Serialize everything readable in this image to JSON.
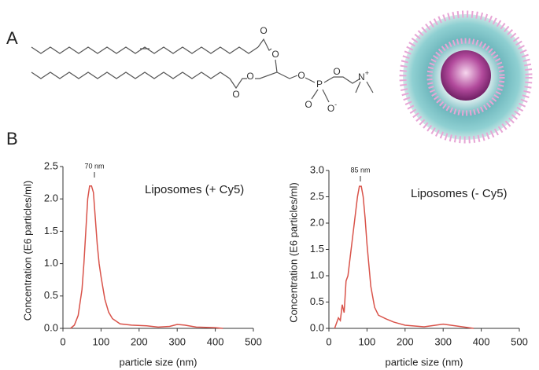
{
  "panel_labels": [
    "A",
    "B"
  ],
  "atoms": [
    {
      "label": "O"
    },
    {
      "label": "O"
    },
    {
      "label": "O"
    },
    {
      "label": "O"
    },
    {
      "label": "O"
    },
    {
      "label": "P"
    },
    {
      "label": "O"
    },
    {
      "label": "O"
    },
    {
      "label": "O",
      "charge": "-"
    },
    {
      "label": "N",
      "charge": "+"
    }
  ],
  "chart_data": [
    {
      "type": "line",
      "x_label": "particle size (nm)",
      "y_label": "Concentration (E6 particles/ml)",
      "annotation": "Liposomes (+ Cy5)",
      "peak_label": "70 nm",
      "x": [
        20,
        30,
        40,
        50,
        55,
        60,
        65,
        70,
        75,
        80,
        85,
        90,
        95,
        100,
        110,
        120,
        130,
        150,
        180,
        220,
        250,
        280,
        300,
        320,
        350,
        400,
        420
      ],
      "series": [
        {
          "color": "#d9534a",
          "values": [
            0,
            0.05,
            0.2,
            0.6,
            1.0,
            1.5,
            2.0,
            2.2,
            2.2,
            2.1,
            1.7,
            1.3,
            1.0,
            0.8,
            0.45,
            0.25,
            0.15,
            0.07,
            0.05,
            0.04,
            0.02,
            0.03,
            0.06,
            0.05,
            0.02,
            0.01,
            0
          ]
        }
      ],
      "xlim": [
        0,
        500
      ],
      "xticks": [
        0,
        100,
        200,
        300,
        400,
        500
      ],
      "ylim": [
        0,
        2.5
      ],
      "yticks": [
        {
          "value": 0,
          "label": "0.0"
        },
        0.5,
        {
          "value": 1,
          "label": "1.0"
        },
        1.5,
        {
          "value": 2,
          "label": "2.0"
        },
        2.5
      ]
    },
    {
      "type": "line",
      "x_label": "particle size (nm)",
      "y_label": "Concentration (E6 particles/ml)",
      "annotation": "Liposomes (- Cy5)",
      "peak_label": "85 nm",
      "x": [
        15,
        20,
        25,
        30,
        35,
        40,
        45,
        50,
        55,
        60,
        65,
        70,
        75,
        80,
        85,
        90,
        95,
        100,
        105,
        110,
        120,
        130,
        150,
        170,
        200,
        250,
        300,
        330,
        380
      ],
      "series": [
        {
          "color": "#d9534a",
          "values": [
            0,
            0.1,
            0.2,
            0.15,
            0.45,
            0.3,
            0.9,
            1.0,
            1.3,
            1.6,
            1.9,
            2.2,
            2.5,
            2.7,
            2.7,
            2.5,
            2.1,
            1.6,
            1.2,
            0.8,
            0.4,
            0.25,
            0.18,
            0.12,
            0.06,
            0.03,
            0.08,
            0.05,
            0
          ]
        }
      ],
      "xlim": [
        0,
        500
      ],
      "xticks": [
        0,
        100,
        200,
        300,
        400,
        500
      ],
      "ylim": [
        0,
        3
      ],
      "yticks": [
        {
          "value": 0,
          "label": "0.0"
        },
        0.5,
        {
          "value": 1,
          "label": "1.0"
        },
        1.5,
        {
          "value": 2,
          "label": "2.0"
        },
        2.5,
        {
          "value": 3,
          "label": "3.0"
        }
      ]
    }
  ]
}
